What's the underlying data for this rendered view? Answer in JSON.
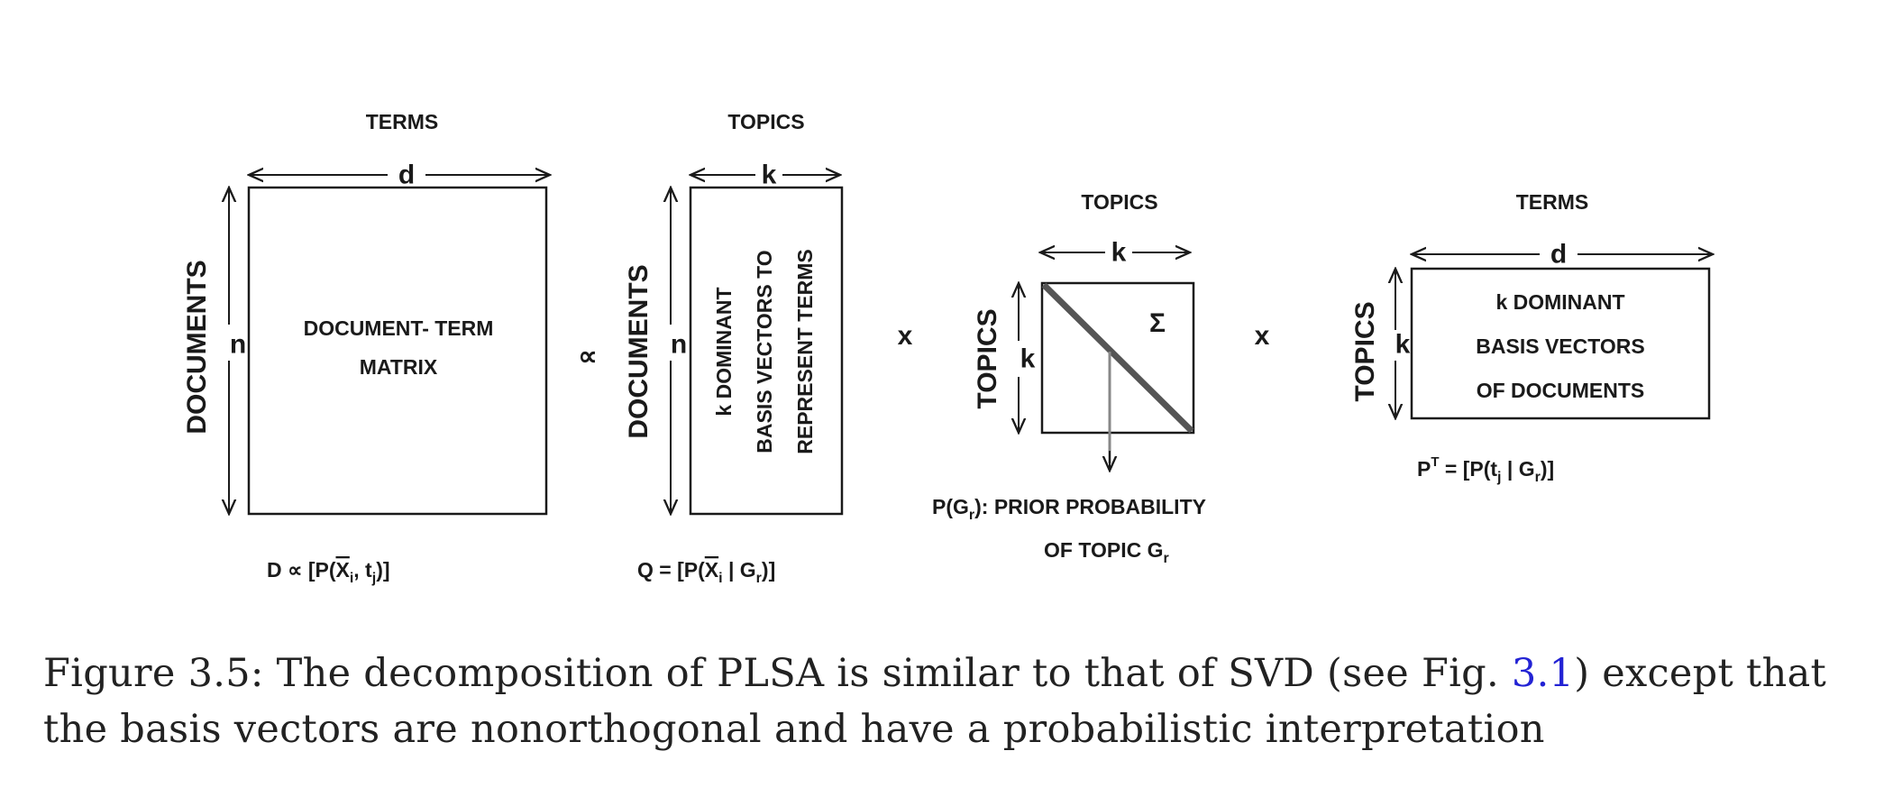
{
  "diagram": {
    "matrix_d": {
      "top_label": "TERMS",
      "dim_top": "d",
      "side_label": "DOCUMENTS",
      "dim_side": "n",
      "body_line1": "DOCUMENT- TERM",
      "body_line2": "MATRIX",
      "formula_pre": "D ∝  [P(",
      "formula_var": "X",
      "formula_sub_i": "i",
      "formula_mid": ", t",
      "formula_sub_j": "j",
      "formula_end": ")]"
    },
    "proportional_symbol": "∝",
    "matrix_q": {
      "top_label": "TOPICS",
      "dim_top": "k",
      "side_label": "DOCUMENTS",
      "dim_side": "n",
      "body_line1": "k DOMINANT",
      "body_line2": "BASIS  VECTORS TO",
      "body_line3": "REPRESENT TERMS",
      "formula_pre": "Q = [P(",
      "formula_var": "X",
      "formula_sub_i": "i",
      "formula_mid": " | G",
      "formula_sub_r": "r",
      "formula_end": ")]"
    },
    "times_1": "x",
    "matrix_sigma": {
      "top_label": "TOPICS",
      "dim_top": "k",
      "side_label": "TOPICS",
      "dim_side": "k",
      "symbol": "Σ",
      "prior_pre": "P(G",
      "prior_sub": "r",
      "prior_post": "):  PRIOR PROBABILITY",
      "prior_line2_pre": "OF TOPIC G",
      "prior_line2_sub": "r"
    },
    "times_2": "x",
    "matrix_p": {
      "top_label": "TERMS",
      "dim_top": "d",
      "side_label": "TOPICS",
      "dim_side": "k",
      "body_line1": "k DOMINANT",
      "body_line2": "BASIS  VECTORS",
      "body_line3": "OF DOCUMENTS",
      "formula_pre": "P",
      "formula_sup": "T",
      "formula_mid": " = [P(t",
      "formula_sub_j": "j",
      "formula_mid2": " | G",
      "formula_sub_r": "r",
      "formula_end": ")]"
    }
  },
  "caption": {
    "text_1": "Figure 3.5: The decomposition of PLSA is similar to that of SVD (see Fig. ",
    "ref": "3.1",
    "text_2": ") except that the basis vectors are nonorthogonal and have a probabilistic interpretation"
  }
}
